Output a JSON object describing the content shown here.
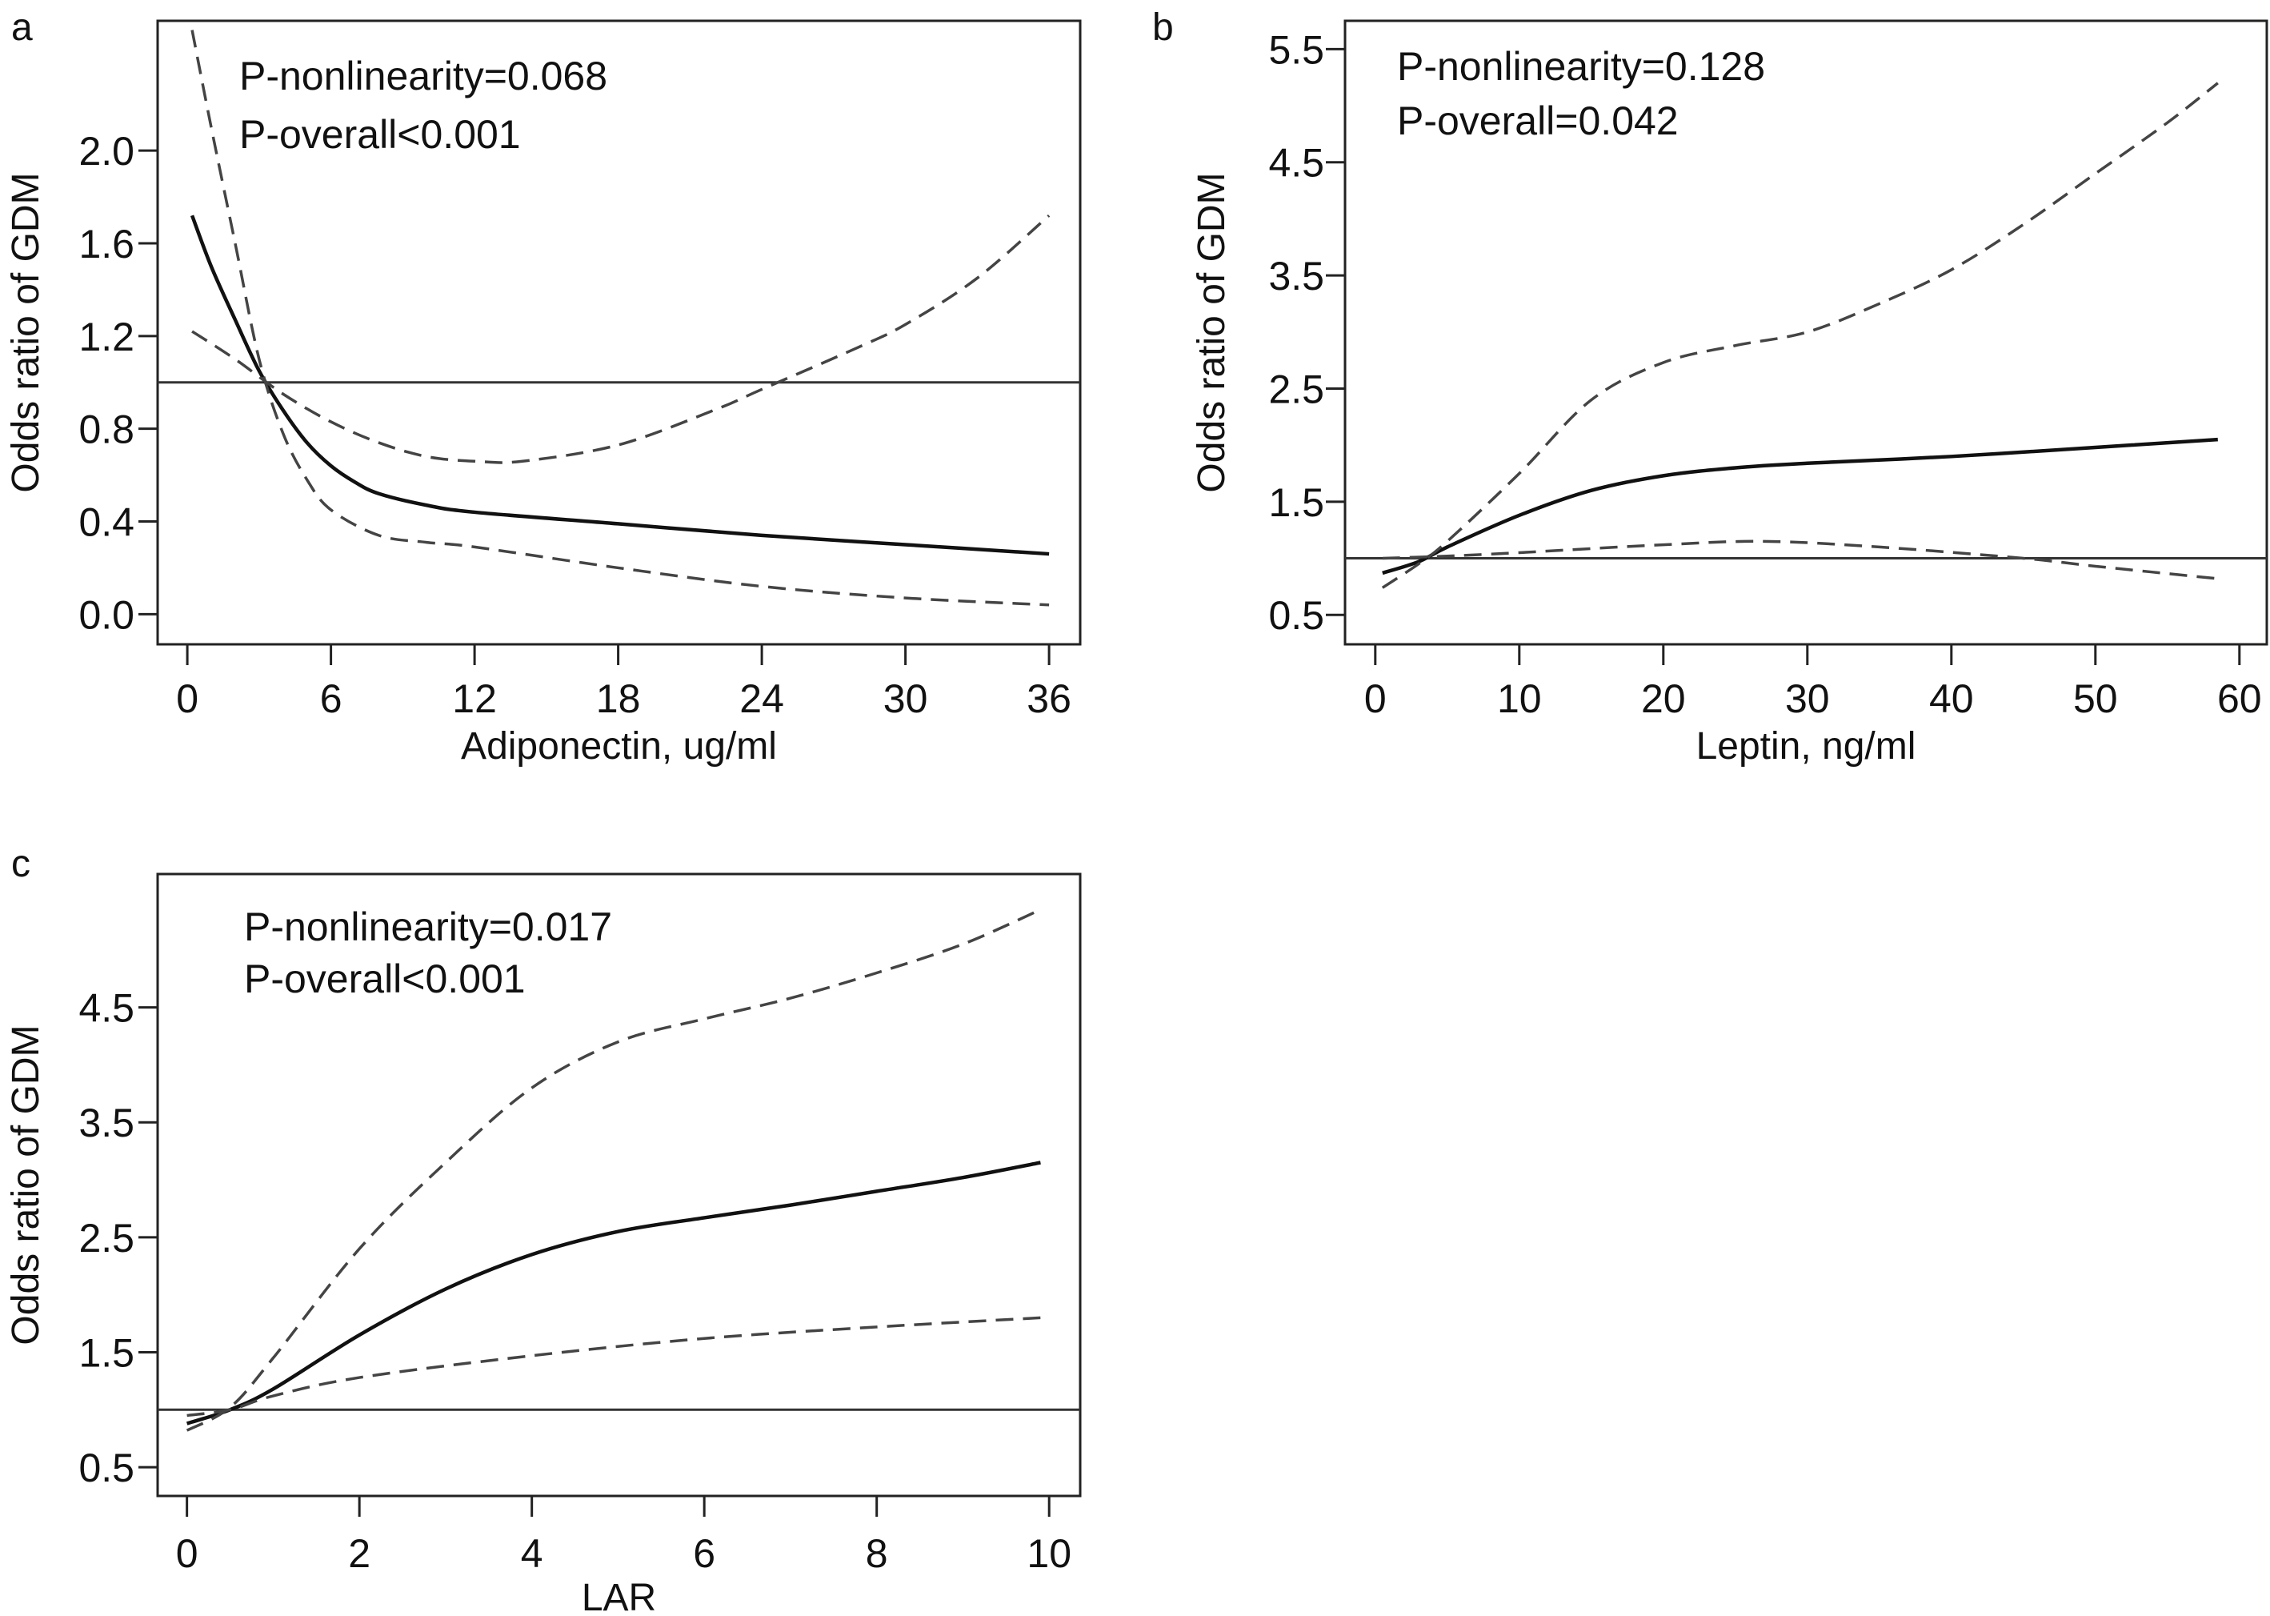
{
  "chart_data": [
    {
      "type": "line",
      "panel_label": "a",
      "xlabel": "Adiponectin, ug/ml",
      "ylabel": "Odds ratio of GDM",
      "annotations": [
        "P-nonlinearity=0.068",
        "P-overall<0.001"
      ],
      "xlim": [
        -1.24,
        37.3
      ],
      "ylim": [
        -0.13,
        2.56
      ],
      "xticks": [
        0,
        6,
        12,
        18,
        24,
        30,
        36
      ],
      "yticks": [
        0.0,
        0.4,
        0.8,
        1.2,
        1.6,
        2.0
      ],
      "ytick_labels": [
        "0.0",
        "0.4",
        "0.8",
        "1.2",
        "1.6",
        "2.0"
      ],
      "reference_y": 1,
      "grid": false,
      "series": [
        {
          "style": "solid",
          "x": [
            0.2,
            1,
            2,
            3,
            4,
            5,
            6,
            7,
            8,
            10,
            12,
            18,
            24,
            30,
            36
          ],
          "y": [
            1.72,
            1.5,
            1.27,
            1.05,
            0.88,
            0.74,
            0.64,
            0.57,
            0.52,
            0.47,
            0.44,
            0.39,
            0.34,
            0.3,
            0.26
          ]
        },
        {
          "style": "dashed",
          "x": [
            0.2,
            2,
            4,
            6,
            8,
            10,
            12,
            14,
            18,
            22,
            24,
            28,
            30,
            33,
            36
          ],
          "y": [
            1.22,
            1.1,
            0.95,
            0.83,
            0.74,
            0.68,
            0.66,
            0.66,
            0.73,
            0.88,
            0.97,
            1.15,
            1.25,
            1.45,
            1.72
          ]
        },
        {
          "style": "dashed",
          "x": [
            0.2,
            1,
            2,
            3,
            4,
            5,
            6,
            8,
            10,
            12,
            18,
            24,
            30,
            36
          ],
          "y": [
            2.52,
            2.1,
            1.6,
            1.1,
            0.78,
            0.58,
            0.45,
            0.34,
            0.31,
            0.29,
            0.2,
            0.12,
            0.07,
            0.04
          ]
        }
      ]
    },
    {
      "type": "line",
      "panel_label": "b",
      "xlabel": "Leptin, ng/ml",
      "ylabel": "Odds ratio of GDM",
      "annotations": [
        "P-nonlinearity=0.128",
        "P-overall=0.042"
      ],
      "xlim": [
        -2.1,
        61.9
      ],
      "ylim": [
        0.24,
        5.75
      ],
      "xticks": [
        0,
        10,
        20,
        30,
        40,
        50,
        60
      ],
      "yticks": [
        0.5,
        1.5,
        2.5,
        3.5,
        4.5,
        5.5
      ],
      "ytick_labels": [
        "0.5",
        "1.5",
        "2.5",
        "3.5",
        "4.5",
        "5.5"
      ],
      "reference_y": 1,
      "grid": false,
      "series": [
        {
          "style": "solid",
          "x": [
            0.5,
            3,
            5,
            10,
            15,
            20,
            25,
            30,
            40,
            50,
            58.5
          ],
          "y": [
            0.87,
            0.97,
            1.1,
            1.38,
            1.6,
            1.73,
            1.8,
            1.84,
            1.9,
            1.98,
            2.05
          ]
        },
        {
          "style": "dashed",
          "x": [
            0.5,
            3,
            5,
            10,
            15,
            20,
            25,
            30,
            35,
            40,
            45,
            50,
            55,
            58.5
          ],
          "y": [
            0.74,
            0.95,
            1.15,
            1.75,
            2.4,
            2.73,
            2.88,
            3.0,
            3.25,
            3.55,
            3.95,
            4.4,
            4.85,
            5.2
          ]
        },
        {
          "style": "dashed",
          "x": [
            0.5,
            5,
            10,
            20,
            27,
            35,
            45,
            50,
            58.5
          ],
          "y": [
            1.0,
            1.02,
            1.05,
            1.12,
            1.15,
            1.1,
            1.0,
            0.93,
            0.82
          ]
        }
      ]
    },
    {
      "type": "line",
      "panel_label": "c",
      "xlabel": "LAR",
      "ylabel": "Odds ratio of GDM",
      "annotations": [
        "P-nonlinearity=0.017",
        "P-overall<0.001"
      ],
      "xlim": [
        -0.34,
        10.36
      ],
      "ylim": [
        0.25,
        5.66
      ],
      "xticks": [
        0,
        2,
        4,
        6,
        8,
        10
      ],
      "yticks": [
        0.5,
        1.5,
        2.5,
        3.5,
        4.5
      ],
      "ytick_labels": [
        "0.5",
        "1.5",
        "2.5",
        "3.5",
        "4.5"
      ],
      "reference_y": 1,
      "grid": false,
      "series": [
        {
          "style": "solid",
          "x": [
            0,
            0.5,
            1,
            2,
            3,
            4,
            5,
            6,
            7,
            8,
            9,
            9.9
          ],
          "y": [
            0.88,
            1.0,
            1.18,
            1.65,
            2.05,
            2.35,
            2.55,
            2.67,
            2.78,
            2.9,
            3.02,
            3.15
          ]
        },
        {
          "style": "dashed",
          "x": [
            0,
            0.5,
            1,
            2,
            3,
            4,
            5,
            6,
            7,
            8,
            9,
            9.9
          ],
          "y": [
            0.82,
            1.02,
            1.45,
            2.4,
            3.15,
            3.8,
            4.2,
            4.4,
            4.58,
            4.8,
            5.05,
            5.35
          ]
        },
        {
          "style": "dashed",
          "x": [
            0,
            0.5,
            1,
            2,
            4,
            6,
            8,
            9.9
          ],
          "y": [
            0.95,
            1.0,
            1.12,
            1.28,
            1.47,
            1.62,
            1.72,
            1.8
          ]
        }
      ]
    }
  ]
}
